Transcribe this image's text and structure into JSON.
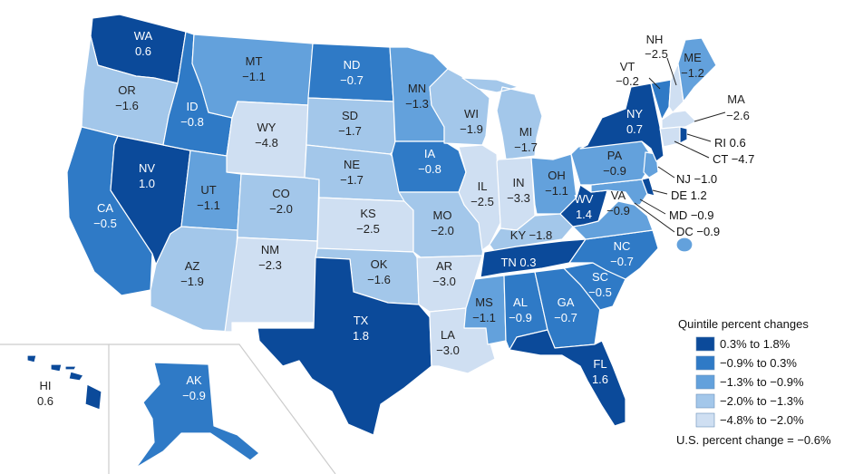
{
  "colors": {
    "q1": "#0b4a9a",
    "q2": "#2f7ac6",
    "q3": "#63a1dc",
    "q4": "#a3c7ea",
    "q5": "#cfdff2"
  },
  "legend": {
    "title": "Quintile percent changes",
    "items": [
      {
        "label": "0.3% to 1.8%",
        "color": "#0b4a9a"
      },
      {
        "label": "−0.9% to 0.3%",
        "color": "#2f7ac6"
      },
      {
        "label": "−1.3% to −0.9%",
        "color": "#63a1dc"
      },
      {
        "label": "−2.0% to −1.3%",
        "color": "#a3c7ea"
      },
      {
        "label": "−4.8% to −2.0%",
        "color": "#cfdff2"
      }
    ],
    "us_change": "U.S. percent change = −0.6%"
  },
  "states": {
    "WA": {
      "abbr": "WA",
      "value": "0.6",
      "quintile": 1
    },
    "OR": {
      "abbr": "OR",
      "value": "−1.6",
      "quintile": 4
    },
    "CA": {
      "abbr": "CA",
      "value": "−0.5",
      "quintile": 2
    },
    "NV": {
      "abbr": "NV",
      "value": "1.0",
      "quintile": 1
    },
    "ID": {
      "abbr": "ID",
      "value": "−0.8",
      "quintile": 2
    },
    "MT": {
      "abbr": "MT",
      "value": "−1.1",
      "quintile": 3
    },
    "WY": {
      "abbr": "WY",
      "value": "−4.8",
      "quintile": 5
    },
    "UT": {
      "abbr": "UT",
      "value": "−1.1",
      "quintile": 3
    },
    "AZ": {
      "abbr": "AZ",
      "value": "−1.9",
      "quintile": 4
    },
    "CO": {
      "abbr": "CO",
      "value": "−2.0",
      "quintile": 4
    },
    "NM": {
      "abbr": "NM",
      "value": "−2.3",
      "quintile": 5
    },
    "ND": {
      "abbr": "ND",
      "value": "−0.7",
      "quintile": 2
    },
    "SD": {
      "abbr": "SD",
      "value": "−1.7",
      "quintile": 4
    },
    "NE": {
      "abbr": "NE",
      "value": "−1.7",
      "quintile": 4
    },
    "KS": {
      "abbr": "KS",
      "value": "−2.5",
      "quintile": 5
    },
    "OK": {
      "abbr": "OK",
      "value": "−1.6",
      "quintile": 4
    },
    "TX": {
      "abbr": "TX",
      "value": "1.8",
      "quintile": 1
    },
    "MN": {
      "abbr": "MN",
      "value": "−1.3",
      "quintile": 3
    },
    "IA": {
      "abbr": "IA",
      "value": "−0.8",
      "quintile": 2
    },
    "MO": {
      "abbr": "MO",
      "value": "−2.0",
      "quintile": 4
    },
    "AR": {
      "abbr": "AR",
      "value": "−3.0",
      "quintile": 5
    },
    "LA": {
      "abbr": "LA",
      "value": "−3.0",
      "quintile": 5
    },
    "WI": {
      "abbr": "WI",
      "value": "−1.9",
      "quintile": 4
    },
    "IL": {
      "abbr": "IL",
      "value": "−2.5",
      "quintile": 5
    },
    "MI": {
      "abbr": "MI",
      "value": "−1.7",
      "quintile": 4
    },
    "IN": {
      "abbr": "IN",
      "value": "−3.3",
      "quintile": 5
    },
    "OH": {
      "abbr": "OH",
      "value": "−1.1",
      "quintile": 3
    },
    "KY": {
      "abbr": "KY",
      "value": "−1.8",
      "quintile": 4
    },
    "TN": {
      "abbr": "TN",
      "value": "0.3",
      "quintile": 1
    },
    "MS": {
      "abbr": "MS",
      "value": "−1.1",
      "quintile": 3
    },
    "AL": {
      "abbr": "AL",
      "value": "−0.9",
      "quintile": 2
    },
    "GA": {
      "abbr": "GA",
      "value": "−0.7",
      "quintile": 2
    },
    "FL": {
      "abbr": "FL",
      "value": "1.6",
      "quintile": 1
    },
    "SC": {
      "abbr": "SC",
      "value": "−0.5",
      "quintile": 2
    },
    "NC": {
      "abbr": "NC",
      "value": "−0.7",
      "quintile": 2
    },
    "VA": {
      "abbr": "VA",
      "value": "−0.9",
      "quintile": 3
    },
    "WV": {
      "abbr": "WV",
      "value": "1.4",
      "quintile": 1
    },
    "PA": {
      "abbr": "PA",
      "value": "−0.9",
      "quintile": 3
    },
    "NY": {
      "abbr": "NY",
      "value": "0.7",
      "quintile": 1
    },
    "VT": {
      "abbr": "VT",
      "value": "−0.2",
      "quintile": 2
    },
    "NH": {
      "abbr": "NH",
      "value": "−2.5",
      "quintile": 5
    },
    "ME": {
      "abbr": "ME",
      "value": "−1.2",
      "quintile": 3
    },
    "MA": {
      "abbr": "MA",
      "value": "−2.6",
      "quintile": 5
    },
    "RI": {
      "abbr": "RI",
      "value": "0.6",
      "quintile": 1
    },
    "CT": {
      "abbr": "CT",
      "value": "−4.7",
      "quintile": 5
    },
    "NJ": {
      "abbr": "NJ",
      "value": "−1.0",
      "quintile": 3
    },
    "DE": {
      "abbr": "DE",
      "value": "1.2",
      "quintile": 1
    },
    "MD": {
      "abbr": "MD",
      "value": "−0.9",
      "quintile": 3
    },
    "DC": {
      "abbr": "DC",
      "value": "−0.9",
      "quintile": 3
    },
    "AK": {
      "abbr": "AK",
      "value": "−0.9",
      "quintile": 2
    },
    "HI": {
      "abbr": "HI",
      "value": "0.6",
      "quintile": 1
    }
  },
  "callouts": {
    "NH": "NH\n−2.5",
    "VT": "VT\n−0.2",
    "MA": "MA\n−2.6",
    "RI": "RI 0.6",
    "CT": "CT −4.7",
    "NJ": "NJ −1.0",
    "DE": "DE 1.2",
    "MD": "MD −0.9",
    "DC": "DC −0.9",
    "TN": "TN 0.3",
    "KY": "KY −1.8"
  }
}
